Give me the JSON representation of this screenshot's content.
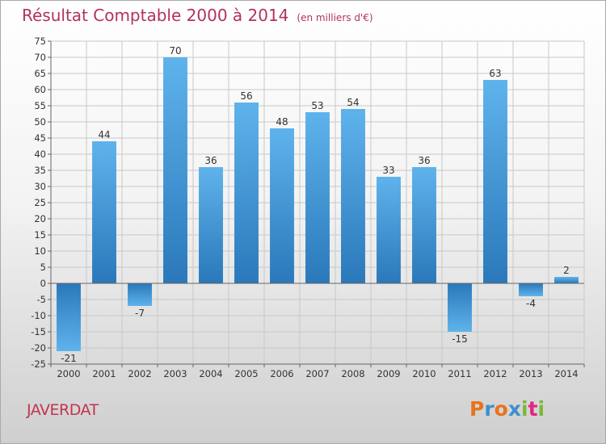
{
  "header": {
    "title": "Résultat Comptable 2000 à 2014",
    "subtitle": "(en milliers d'€)"
  },
  "commune": "JAVERDAT",
  "logo": {
    "text": "Proxiti",
    "letters": [
      "P",
      "r",
      "o",
      "x",
      "i",
      "t",
      "i"
    ],
    "letter_colors": [
      "#e8731e",
      "#3d8fce",
      "#e8731e",
      "#3d8fce",
      "#7bb83a",
      "#e0287f",
      "#7bb83a"
    ]
  },
  "colors": {
    "bar_light": "#5fb3ec",
    "bar_dark": "#2a78ba",
    "grid": "#c8c8c8",
    "axis": "#666666",
    "label": "#333333"
  },
  "chart_data": {
    "type": "bar",
    "title": "Résultat Comptable 2000 à 2014",
    "categories": [
      "2000",
      "2001",
      "2002",
      "2003",
      "2004",
      "2005",
      "2006",
      "2007",
      "2008",
      "2009",
      "2010",
      "2011",
      "2012",
      "2013",
      "2014"
    ],
    "values": [
      -21,
      44,
      -7,
      70,
      36,
      56,
      48,
      53,
      54,
      33,
      36,
      -15,
      63,
      -4,
      2
    ],
    "ylim": [
      -25,
      75
    ],
    "ytick_step": 5,
    "grid": true,
    "data_labels": true
  }
}
